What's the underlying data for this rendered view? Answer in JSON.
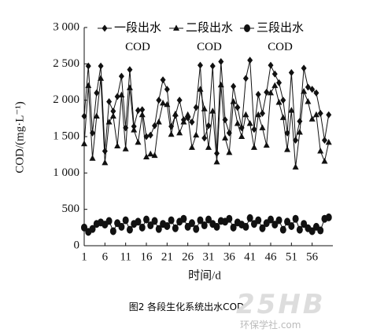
{
  "chart_data": {
    "type": "line",
    "xlabel": "时间/d",
    "ylabel": "COD/(mg·L⁻¹)",
    "x": [
      1,
      2,
      3,
      4,
      5,
      6,
      7,
      8,
      9,
      10,
      11,
      12,
      13,
      14,
      15,
      16,
      17,
      18,
      19,
      20,
      21,
      22,
      23,
      24,
      25,
      26,
      27,
      28,
      29,
      30,
      31,
      32,
      33,
      34,
      35,
      36,
      37,
      38,
      39,
      40,
      41,
      42,
      43,
      44,
      45,
      46,
      47,
      48,
      49,
      50,
      51,
      52,
      53,
      54,
      55,
      56,
      57,
      58,
      59,
      60
    ],
    "xlim": [
      1,
      61
    ],
    "xticks": [
      1,
      6,
      11,
      16,
      21,
      26,
      31,
      36,
      41,
      46,
      51,
      56
    ],
    "ylim": [
      0,
      3000
    ],
    "yticks": [
      0,
      500,
      {
        "value": 1000,
        "label": "1 000"
      },
      {
        "value": 1500,
        "label": "1 500"
      },
      {
        "value": 2000,
        "label": "2 000"
      },
      {
        "value": 2500,
        "label": "2 500"
      },
      {
        "value": 3000,
        "label": "3 000"
      }
    ],
    "series": [
      {
        "name": "一段出水COD",
        "color": "#111111",
        "marker": "diamond",
        "values": [
          1780,
          2470,
          1550,
          2100,
          2470,
          1300,
          1980,
          1850,
          2050,
          2330,
          1620,
          2420,
          1640,
          1860,
          1870,
          1500,
          1520,
          1650,
          2000,
          2280,
          2150,
          1640,
          1790,
          2000,
          1730,
          1760,
          1700,
          1900,
          2480,
          1480,
          1650,
          2470,
          1270,
          2530,
          1730,
          1550,
          2190,
          1900,
          1620,
          2300,
          2550,
          1600,
          2080,
          1820,
          2110,
          2480,
          2360,
          2240,
          2000,
          1550,
          2380,
          1450,
          1710,
          2440,
          2180,
          2150,
          2100,
          1820,
          1450,
          1800
        ]
      },
      {
        "name": "二段出水COD",
        "color": "#111111",
        "marker": "triangle",
        "values": [
          1400,
          2200,
          1200,
          1780,
          2300,
          1140,
          1700,
          1780,
          1370,
          2070,
          1330,
          2170,
          1590,
          1420,
          1800,
          1220,
          1260,
          1240,
          1700,
          1960,
          1940,
          1530,
          1810,
          1550,
          1700,
          1800,
          1350,
          1520,
          2150,
          1880,
          1350,
          1850,
          1150,
          2210,
          1480,
          1280,
          1980,
          1680,
          1500,
          1800,
          1680,
          1350,
          1800,
          1620,
          1380,
          2100,
          2200,
          1970,
          1760,
          1320,
          1860,
          1080,
          1560,
          2120,
          1980,
          1740,
          1800,
          1300,
          1160,
          1420
        ]
      },
      {
        "name": "三段出水COD",
        "color": "#111111",
        "marker": "circle",
        "values": [
          250,
          190,
          230,
          300,
          320,
          290,
          340,
          200,
          310,
          260,
          350,
          220,
          300,
          330,
          250,
          360,
          280,
          340,
          230,
          300,
          270,
          350,
          240,
          330,
          370,
          260,
          310,
          230,
          350,
          280,
          360,
          300,
          260,
          340,
          330,
          370,
          250,
          320,
          290,
          260,
          380,
          300,
          350,
          240,
          310,
          360,
          290,
          350,
          220,
          330,
          270,
          370,
          220,
          300,
          240,
          200,
          260,
          210,
          370,
          390
        ]
      }
    ],
    "caption": "图2 各段生化系统出水COD",
    "watermark": "25HB",
    "watermark_sub": "环保学社.com"
  }
}
